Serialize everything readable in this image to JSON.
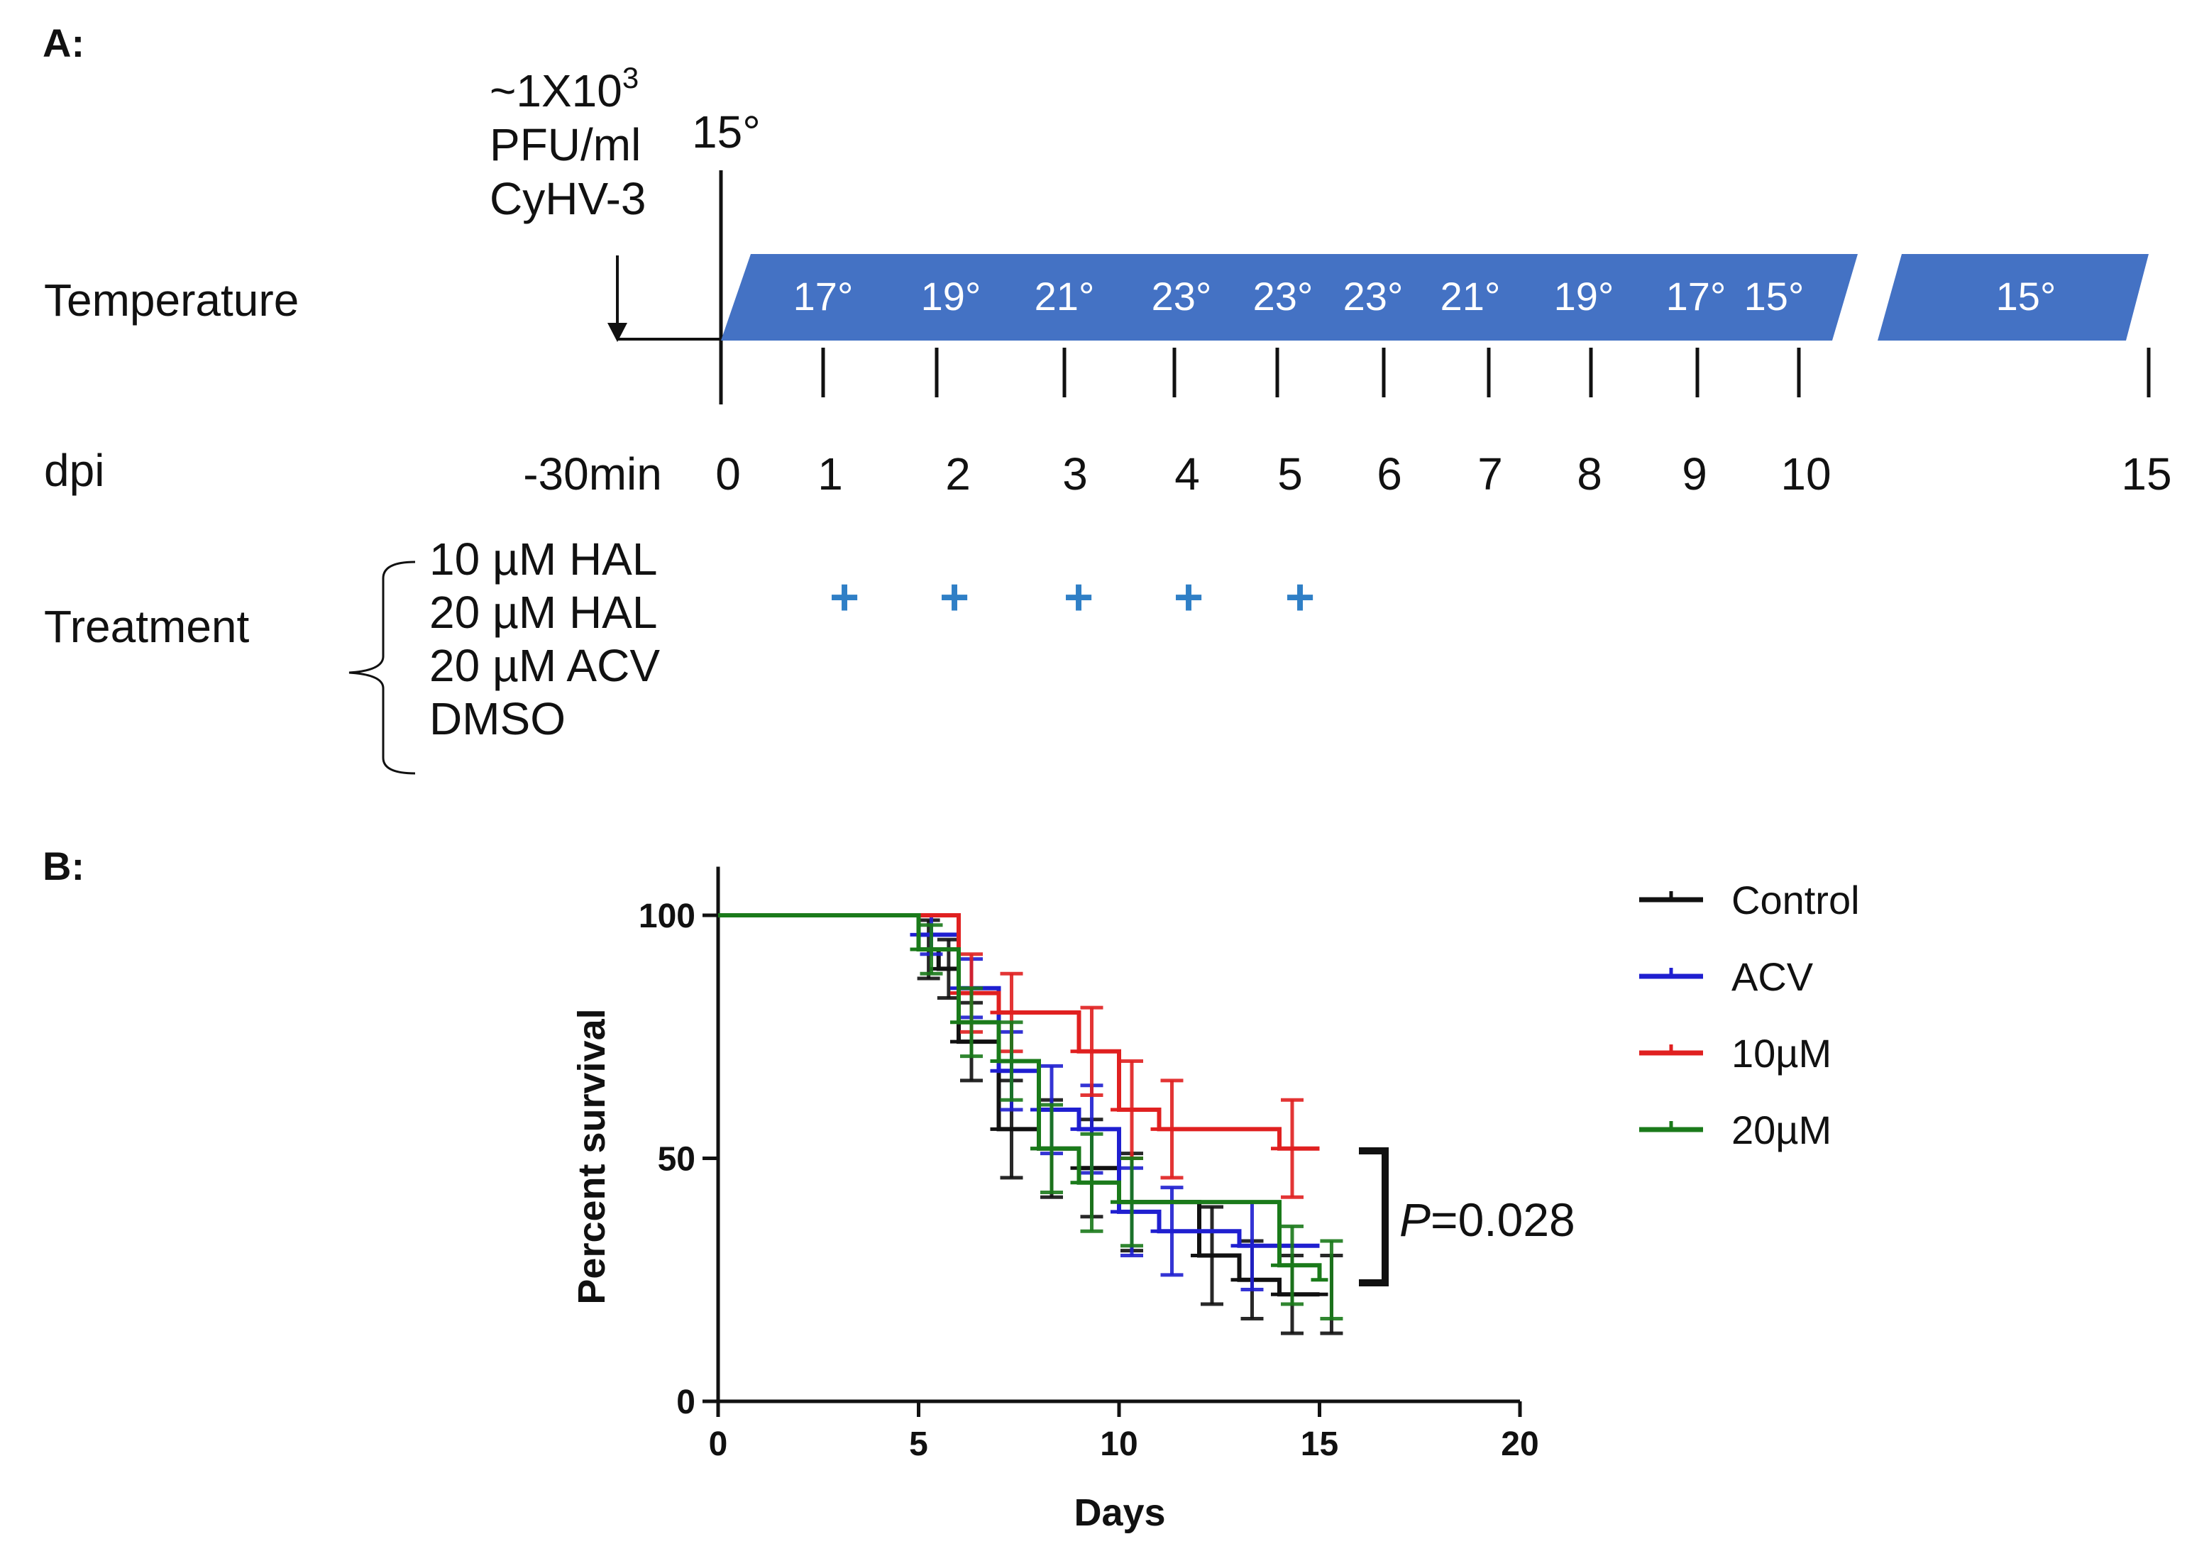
{
  "panel_a": {
    "label": "A:",
    "inoculum": {
      "line1": "~1X10",
      "sup": "3",
      "line2": "PFU/ml",
      "line3": "CyHV-3"
    },
    "start_temp": "15°",
    "row_temperature": "Temperature",
    "row_dpi": "dpi",
    "row_treatment": "Treatment",
    "temps": [
      "17°",
      "19°",
      "21°",
      "23°",
      "23°",
      "23°",
      "21°",
      "19°",
      "17°",
      "15°"
    ],
    "final_temp": "15°",
    "dpi_labels": [
      "-30min",
      "0",
      "1",
      "2",
      "3",
      "4",
      "5",
      "6",
      "7",
      "8",
      "9",
      "10",
      "15"
    ],
    "treatments": [
      "10 µM HAL",
      "20 µM HAL",
      "20 µM ACV",
      "DMSO"
    ],
    "treatment_mark": "+",
    "treatment_days": [
      1,
      2,
      3,
      4,
      5
    ],
    "band_color": "#4472c4"
  },
  "panel_b": {
    "label": "B:",
    "p_label": "P",
    "p_value": "=0.028"
  },
  "chart_data": {
    "type": "line",
    "subtype": "kaplan-meier step survival with error bars",
    "title": "",
    "xlabel": "Days",
    "ylabel": "Percent survival",
    "xlim": [
      0,
      20
    ],
    "ylim": [
      0,
      110
    ],
    "x_ticks": [
      0,
      5,
      10,
      15,
      20
    ],
    "y_ticks": [
      0,
      50,
      100
    ],
    "legend_position": "top-right",
    "series": [
      {
        "name": "Control",
        "color": "#111111",
        "x": [
          0,
          5,
          5.5,
          6,
          7,
          8,
          9,
          10,
          12,
          13,
          14,
          15
        ],
        "y": [
          100,
          93,
          89,
          74,
          56,
          52,
          48,
          41,
          30,
          25,
          22,
          22
        ],
        "err": [
          0,
          6,
          6,
          8,
          10,
          10,
          10,
          10,
          10,
          8,
          8,
          8
        ]
      },
      {
        "name": "ACV",
        "color": "#1f1fd0",
        "x": [
          0,
          5,
          6,
          7,
          8,
          9,
          10,
          11,
          13,
          14,
          15
        ],
        "y": [
          100,
          96,
          85,
          68,
          60,
          56,
          39,
          35,
          32,
          32,
          32
        ],
        "err": [
          0,
          4,
          6,
          8,
          9,
          9,
          9,
          9,
          9,
          0,
          0
        ]
      },
      {
        "name": "10µM",
        "color": "#e02020",
        "x": [
          0,
          6,
          7,
          9,
          10,
          11,
          14,
          15
        ],
        "y": [
          100,
          84,
          80,
          72,
          60,
          56,
          52,
          52
        ],
        "err": [
          0,
          8,
          8,
          9,
          10,
          10,
          10,
          0
        ]
      },
      {
        "name": "20µM",
        "color": "#1a7a1a",
        "x": [
          0,
          5,
          6,
          7,
          8,
          9,
          10,
          14,
          15
        ],
        "y": [
          100,
          93,
          78,
          70,
          52,
          45,
          41,
          28,
          25
        ],
        "err": [
          0,
          5,
          7,
          8,
          9,
          10,
          9,
          8,
          8
        ]
      }
    ]
  }
}
